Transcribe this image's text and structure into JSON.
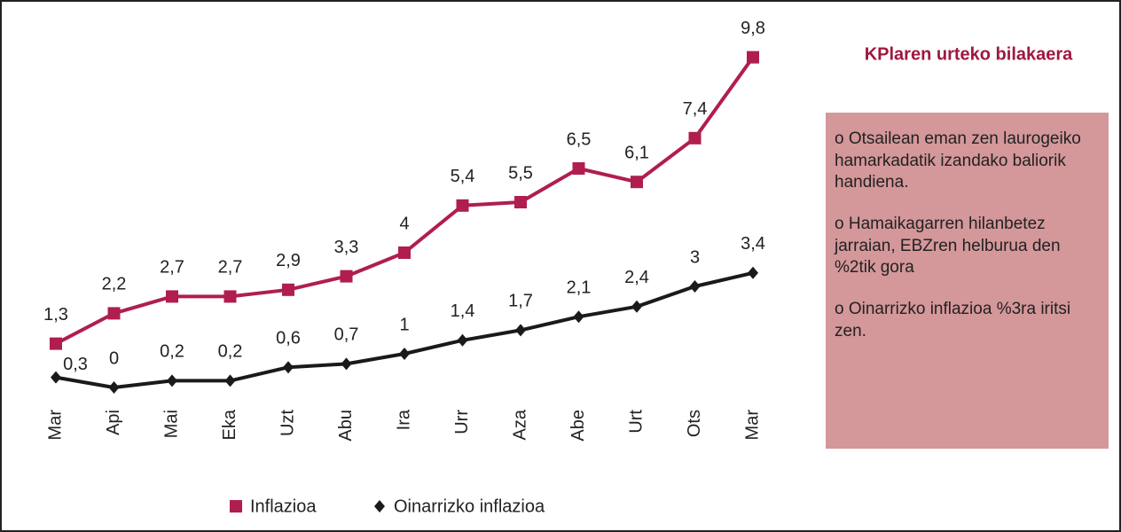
{
  "chart_data": {
    "type": "line",
    "title": "KPlaren urteko bilakaera",
    "notes": [
      "o Otsailean eman zen laurogeiko hamarkadatik izandako baliorik handiena.",
      "o Hamaikagarren hilanbetez jarraian, EBZren helburua den %2tik gora",
      "o Oinarrizko inflazioa %3ra iritsi zen."
    ],
    "categories": [
      "Mar",
      "Api",
      "Mai",
      "Eka",
      "Uzt",
      "Abu",
      "Ira",
      "Urr",
      "Aza",
      "Abe",
      "Urt",
      "Ots",
      "Mar"
    ],
    "ylim": [
      0,
      10
    ],
    "series": [
      {
        "name": "Inflazioa",
        "color": "#b01e4e",
        "marker": "square",
        "values": [
          1.3,
          2.2,
          2.7,
          2.7,
          2.9,
          3.3,
          4,
          5.4,
          5.5,
          6.5,
          6.1,
          7.4,
          9.8
        ],
        "value_labels": [
          "1,3",
          "2,2",
          "2,7",
          "2,7",
          "2,9",
          "3,3",
          "4",
          "5,4",
          "5,5",
          "6,5",
          "6,1",
          "7,4",
          "9,8"
        ]
      },
      {
        "name": "Oinarrizko inflazioa",
        "color": "#1a1a1a",
        "marker": "diamond",
        "values": [
          0.3,
          0,
          0.2,
          0.2,
          0.6,
          0.7,
          1,
          1.4,
          1.7,
          2.1,
          2.4,
          3,
          3.4
        ],
        "value_labels": [
          "0,3",
          "0",
          "0,2",
          "0,2",
          "0,6",
          "0,7",
          "1",
          "1,4",
          "1,7",
          "2,1",
          "2,4",
          "3",
          "3,4"
        ]
      }
    ]
  }
}
